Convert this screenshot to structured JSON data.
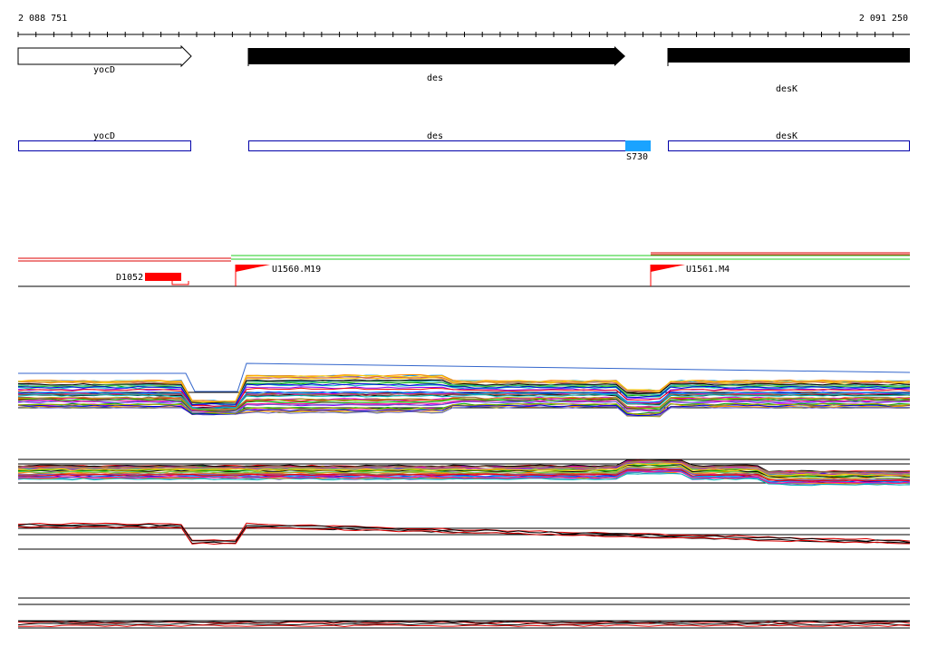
{
  "ruler": {
    "start": "2 088 751",
    "end": "2 091 250"
  },
  "genes": [
    {
      "label": "yocD"
    },
    {
      "label": "des"
    },
    {
      "label": "desK"
    }
  ],
  "annotations": [
    {
      "label": "yocD"
    },
    {
      "label": "des"
    },
    {
      "label": "desK"
    },
    {
      "label": "S730"
    }
  ],
  "features": [
    {
      "label": "D1052"
    },
    {
      "label": "U1560.M19"
    },
    {
      "label": "U1561.M4"
    }
  ]
}
